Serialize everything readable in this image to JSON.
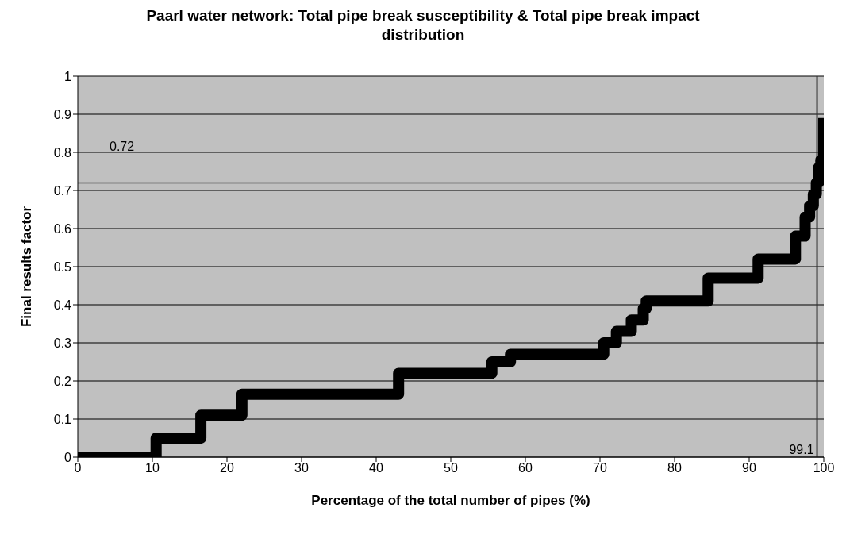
{
  "chart_data": {
    "type": "step",
    "title": "Paarl water network:  Total pipe break susceptibility & Total pipe break impact distribution",
    "xlabel": "Percentage of the total number of pipes (%)",
    "ylabel": "Final results factor",
    "x": [
      0,
      10.5,
      16.5,
      22,
      43,
      55.5,
      58,
      70.5,
      72.2,
      74.2,
      75.8,
      76.2,
      84.5,
      91.2,
      96.2,
      97.5,
      98.1,
      98.6,
      99,
      99.3,
      99.6,
      100,
      100
    ],
    "series": [
      {
        "color": "#000000",
        "values": [
          0,
          0.05,
          0.11,
          0.165,
          0.22,
          0.25,
          0.27,
          0.3,
          0.33,
          0.36,
          0.39,
          0.41,
          0.47,
          0.52,
          0.58,
          0.63,
          0.66,
          0.69,
          0.72,
          0.76,
          0.78,
          0.83,
          0.89
        ]
      }
    ],
    "xlim": [
      0,
      100
    ],
    "xticks": [
      0,
      10,
      20,
      30,
      40,
      50,
      60,
      70,
      80,
      90,
      100
    ],
    "ylim": [
      0,
      1
    ],
    "yticks": [
      0,
      0.1,
      0.2,
      0.3,
      0.4,
      0.5,
      0.6,
      0.7,
      0.8,
      0.9,
      1
    ],
    "grid": "y",
    "marker": "none",
    "line_style": "solid",
    "ref_lines": [
      {
        "axis": "y",
        "value": 0.72,
        "label": "0.72",
        "color": "#808080"
      },
      {
        "axis": "x",
        "value": 99.1,
        "label": "99.1",
        "color": "#333333"
      }
    ]
  }
}
